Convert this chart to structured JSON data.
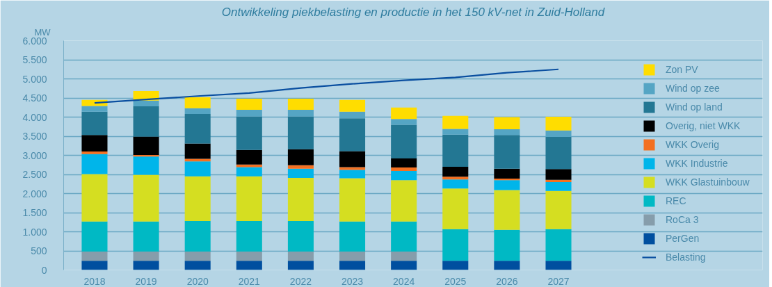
{
  "chart_data": {
    "type": "bar",
    "stacked": true,
    "title": "Ontwikkeling piekbelasting en productie in het 150 kV-net in Zuid-Holland",
    "ylabel": "MW",
    "categories": [
      "2018",
      "2019",
      "2020",
      "2021",
      "2022",
      "2023",
      "2024",
      "2025",
      "2026",
      "2027"
    ],
    "ylim": [
      0,
      6000
    ],
    "yticks": [
      {
        "value": 0,
        "label": "0"
      },
      {
        "value": 500,
        "label": "500"
      },
      {
        "value": 1000,
        "label": "1.000"
      },
      {
        "value": 1500,
        "label": "1.500"
      },
      {
        "value": 2000,
        "label": "2.000"
      },
      {
        "value": 2500,
        "label": "2.500"
      },
      {
        "value": 3000,
        "label": "3.000"
      },
      {
        "value": 3500,
        "label": "3.500"
      },
      {
        "value": 4000,
        "label": "4.000"
      },
      {
        "value": 4500,
        "label": "4.500"
      },
      {
        "value": 5000,
        "label": "5.000"
      },
      {
        "value": 5500,
        "label": "5.500"
      },
      {
        "value": 6000,
        "label": "6.000"
      }
    ],
    "grid": "y",
    "legend": "right",
    "series": [
      {
        "name": "PerGen",
        "color": "#004f9f",
        "values": [
          240,
          240,
          240,
          240,
          240,
          240,
          240,
          240,
          240,
          240
        ]
      },
      {
        "name": "RoCa 3",
        "color": "#869dab",
        "values": [
          240,
          240,
          240,
          240,
          240,
          240,
          240,
          null,
          null,
          null
        ]
      },
      {
        "name": "REC",
        "color": "#00b9c4",
        "values": [
          790,
          790,
          800,
          800,
          800,
          790,
          790,
          830,
          810,
          830
        ]
      },
      {
        "name": "WKK Glastuinbouw",
        "color": "#d5de21",
        "values": [
          1240,
          1220,
          1170,
          1170,
          1130,
          1130,
          1080,
          1060,
          1040,
          1000
        ]
      },
      {
        "name": "WKK Industrie",
        "color": "#00b5ea",
        "values": [
          520,
          480,
          390,
          240,
          240,
          220,
          240,
          240,
          260,
          230
        ]
      },
      {
        "name": "WKK Overig",
        "color": "#f37021",
        "values": [
          70,
          40,
          70,
          70,
          90,
          70,
          90,
          70,
          40,
          60
        ]
      },
      {
        "name": "Overig, niet WKK",
        "color": "#000000",
        "values": [
          430,
          480,
          400,
          380,
          420,
          420,
          240,
          260,
          260,
          280
        ]
      },
      {
        "name": "Wind op land",
        "color": "#237793",
        "values": [
          610,
          790,
          770,
          880,
          860,
          860,
          880,
          840,
          880,
          840
        ]
      },
      {
        "name": "Wind op zee",
        "color": "#55a5c4",
        "values": [
          150,
          150,
          150,
          170,
          170,
          170,
          150,
          150,
          150,
          170
        ]
      },
      {
        "name": "Zon PV",
        "color": "#ffdd00",
        "values": [
          160,
          250,
          290,
          290,
          290,
          310,
          300,
          340,
          320,
          360
        ]
      },
      {
        "name": "Belasting",
        "type": "line",
        "color": "#0a4fa0",
        "line_style": "solid",
        "marker": "none",
        "values": [
          4370,
          4460,
          4550,
          4630,
          4760,
          4870,
          4960,
          5040,
          5160,
          5250
        ]
      }
    ]
  }
}
